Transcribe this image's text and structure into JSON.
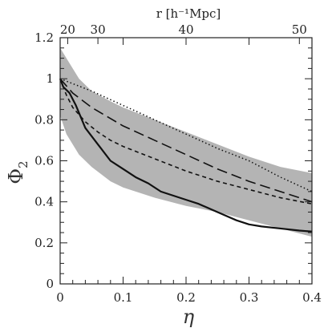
{
  "chart_data": {
    "type": "line",
    "xlabel": "η",
    "ylabel": "Φ",
    "ylabel_sub": "2",
    "top_xlabel": "r [h⁻¹Mpc]",
    "xlim": [
      0,
      0.4
    ],
    "ylim": [
      0,
      1.2
    ],
    "x_ticks": [
      "0",
      "0.1",
      "0.2",
      "0.3",
      "0.4"
    ],
    "y_ticks": [
      "0",
      "0.2",
      "0.4",
      "0.6",
      "0.8",
      "1",
      "1.2"
    ],
    "top_ticks": [
      {
        "label": "20",
        "eta": 0.012
      },
      {
        "label": "30",
        "eta": 0.06
      },
      {
        "label": "40",
        "eta": 0.2
      },
      {
        "label": "50",
        "eta": 0.38
      }
    ],
    "band": {
      "color": "#b4b4b4",
      "upper": [
        [
          0,
          1.15
        ],
        [
          0.01,
          1.1
        ],
        [
          0.03,
          1.0
        ],
        [
          0.05,
          0.94
        ],
        [
          0.08,
          0.89
        ],
        [
          0.1,
          0.86
        ],
        [
          0.15,
          0.8
        ],
        [
          0.2,
          0.74
        ],
        [
          0.25,
          0.68
        ],
        [
          0.3,
          0.62
        ],
        [
          0.35,
          0.57
        ],
        [
          0.4,
          0.54
        ]
      ],
      "lower": [
        [
          0.4,
          0.23
        ],
        [
          0.35,
          0.27
        ],
        [
          0.3,
          0.31
        ],
        [
          0.25,
          0.35
        ],
        [
          0.2,
          0.38
        ],
        [
          0.15,
          0.42
        ],
        [
          0.1,
          0.47
        ],
        [
          0.08,
          0.5
        ],
        [
          0.05,
          0.57
        ],
        [
          0.03,
          0.63
        ],
        [
          0.01,
          0.73
        ],
        [
          0,
          0.82
        ]
      ]
    },
    "series": [
      {
        "style": "solid",
        "points": [
          [
            0,
            1.0
          ],
          [
            0.005,
            0.96
          ],
          [
            0.015,
            0.93
          ],
          [
            0.025,
            0.87
          ],
          [
            0.04,
            0.76
          ],
          [
            0.06,
            0.68
          ],
          [
            0.08,
            0.6
          ],
          [
            0.1,
            0.56
          ],
          [
            0.12,
            0.52
          ],
          [
            0.14,
            0.49
          ],
          [
            0.16,
            0.45
          ],
          [
            0.18,
            0.43
          ],
          [
            0.2,
            0.41
          ],
          [
            0.22,
            0.39
          ],
          [
            0.25,
            0.35
          ],
          [
            0.28,
            0.31
          ],
          [
            0.3,
            0.29
          ],
          [
            0.32,
            0.28
          ],
          [
            0.35,
            0.27
          ],
          [
            0.38,
            0.26
          ],
          [
            0.4,
            0.255
          ]
        ]
      },
      {
        "style": "shortdash",
        "points": [
          [
            0,
            1.0
          ],
          [
            0.01,
            0.92
          ],
          [
            0.02,
            0.86
          ],
          [
            0.04,
            0.79
          ],
          [
            0.06,
            0.74
          ],
          [
            0.08,
            0.7
          ],
          [
            0.1,
            0.67
          ],
          [
            0.15,
            0.61
          ],
          [
            0.2,
            0.55
          ],
          [
            0.25,
            0.5
          ],
          [
            0.3,
            0.46
          ],
          [
            0.35,
            0.42
          ],
          [
            0.4,
            0.39
          ]
        ]
      },
      {
        "style": "longdash",
        "points": [
          [
            0,
            1.0
          ],
          [
            0.02,
            0.93
          ],
          [
            0.05,
            0.86
          ],
          [
            0.1,
            0.77
          ],
          [
            0.15,
            0.7
          ],
          [
            0.2,
            0.63
          ],
          [
            0.25,
            0.56
          ],
          [
            0.3,
            0.5
          ],
          [
            0.35,
            0.45
          ],
          [
            0.4,
            0.4
          ]
        ]
      },
      {
        "style": "dotted",
        "points": [
          [
            0,
            1.0
          ],
          [
            0.05,
            0.94
          ],
          [
            0.1,
            0.87
          ],
          [
            0.15,
            0.8
          ],
          [
            0.2,
            0.73
          ],
          [
            0.25,
            0.66
          ],
          [
            0.3,
            0.6
          ],
          [
            0.35,
            0.52
          ],
          [
            0.4,
            0.45
          ]
        ]
      }
    ]
  }
}
